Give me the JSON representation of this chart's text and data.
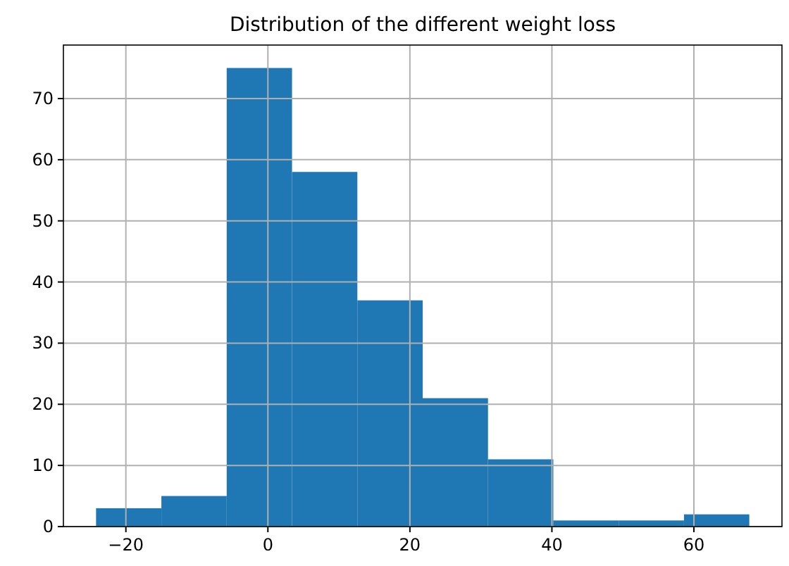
{
  "chart_data": {
    "type": "histogram",
    "title": "Distribution of the different weight loss",
    "bins": [
      -24.2,
      -15,
      -5.8,
      3.4,
      12.6,
      21.8,
      31,
      40.2,
      49.4,
      58.6,
      67.8
    ],
    "values": [
      3,
      5,
      75,
      58,
      37,
      21,
      11,
      1,
      1,
      2
    ],
    "color": "#1f77b4",
    "xlim": [
      -28.8,
      72.4
    ],
    "ylim": [
      0,
      78.75
    ],
    "xticks": [
      -20,
      0,
      20,
      40,
      60
    ],
    "yticks": [
      0,
      10,
      20,
      30,
      40,
      50,
      60,
      70
    ],
    "grid": true
  }
}
